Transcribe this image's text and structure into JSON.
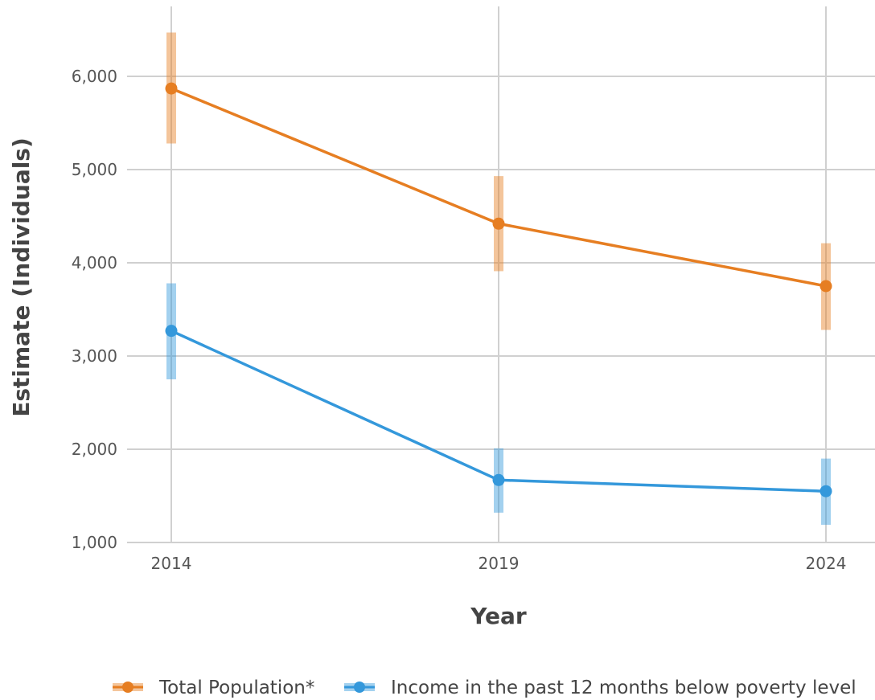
{
  "chart_data": {
    "type": "line",
    "xlabel": "Year",
    "ylabel": "Estimate (Individuals)",
    "x": [
      2014,
      2019,
      2024
    ],
    "x_tick_labels": [
      "2014",
      "2019",
      "2024"
    ],
    "ylim": [
      1000,
      6500
    ],
    "y_ticks": [
      1000,
      2000,
      3000,
      4000,
      5000,
      6000
    ],
    "y_tick_labels": [
      "1,000",
      "2,000",
      "3,000",
      "4,000",
      "5,000",
      "6,000"
    ],
    "grid": true,
    "legend_position": "bottom",
    "series": [
      {
        "name": "Total Population*",
        "color": "#E67E22",
        "values": [
          5870,
          4420,
          3750
        ],
        "error_low": [
          5280,
          3910,
          3280
        ],
        "error_high": [
          6470,
          4930,
          4210
        ]
      },
      {
        "name": "Income in the past 12 months below poverty level",
        "color": "#3498DB",
        "values": [
          3270,
          1670,
          1550
        ],
        "error_low": [
          2750,
          1320,
          1190
        ],
        "error_high": [
          3780,
          2010,
          1900
        ]
      }
    ]
  }
}
